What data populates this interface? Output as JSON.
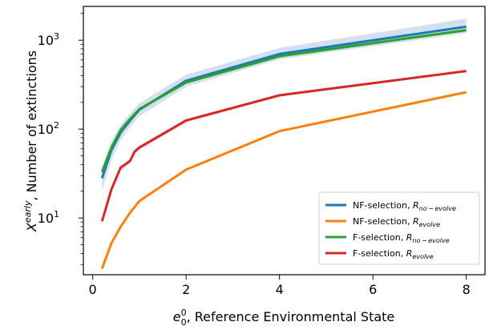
{
  "chart_data": {
    "type": "line",
    "xlabel_parts": {
      "symbol": "e",
      "sup": "0",
      "sub": "0",
      "text": ", Reference Environmental State"
    },
    "ylabel_parts": {
      "symbol": "X",
      "sup": "early",
      "text": ", Number of extinctions"
    },
    "xlim": [
      -0.2,
      8.4
    ],
    "ylim": [
      2.3,
      2400
    ],
    "yscale": "log",
    "x_ticks": [
      0,
      2,
      4,
      6,
      8
    ],
    "y_ticks": [
      {
        "value": 10,
        "base": "10",
        "exp": "1"
      },
      {
        "value": 100,
        "base": "10",
        "exp": "2"
      },
      {
        "value": 1000,
        "base": "10",
        "exp": "3"
      }
    ],
    "legend_position": "lower-right",
    "series": [
      {
        "label_text": "NF-selection, ",
        "label_sub": "R",
        "label_subscript": "no − evolve",
        "color": "#1f77b4",
        "band_color": "#aec7e8",
        "x": [
          0.2,
          0.4,
          0.6,
          0.8,
          1.0,
          2.0,
          4.0,
          8.0
        ],
        "y": [
          28,
          58,
          92,
          125,
          165,
          350,
          700,
          1420
        ],
        "band_low": [
          20,
          45,
          75,
          105,
          140,
          300,
          610,
          1200
        ],
        "band_high": [
          38,
          72,
          112,
          150,
          195,
          410,
          820,
          1750
        ]
      },
      {
        "label_text": "NF-selection, ",
        "label_sub": "R",
        "label_subscript": "evolve",
        "color": "#ff7f0e",
        "band_color": "#ffbb78",
        "x": [
          0.2,
          0.4,
          0.6,
          0.8,
          1.0,
          2.0,
          4.0,
          8.0
        ],
        "y": [
          2.7,
          5.2,
          8.0,
          11.5,
          15.5,
          35,
          95,
          260
        ],
        "band_low": [
          2.6,
          5.0,
          7.7,
          11.1,
          15.0,
          34,
          93,
          255
        ],
        "band_high": [
          2.8,
          5.4,
          8.3,
          11.9,
          16.0,
          36,
          97,
          266
        ]
      },
      {
        "label_text": "F-selection, ",
        "label_sub": "R",
        "label_subscript": "no − evolve",
        "color": "#2ca02c",
        "band_color": "#98df8a",
        "x": [
          0.2,
          0.4,
          0.6,
          0.8,
          1.0,
          2.0,
          4.0,
          8.0
        ],
        "y": [
          33,
          62,
          98,
          130,
          168,
          335,
          660,
          1300
        ],
        "band_low": [
          31,
          59,
          94,
          125,
          162,
          322,
          635,
          1250
        ],
        "band_high": [
          35,
          65,
          102,
          135,
          174,
          348,
          685,
          1350
        ]
      },
      {
        "label_text": "F-selection, ",
        "label_sub": "R",
        "label_subscript": "evolve",
        "color": "#d62728",
        "band_color": "#ff9896",
        "x": [
          0.2,
          0.4,
          0.6,
          0.7,
          0.8,
          0.9,
          1.0,
          2.0,
          4.0,
          8.0
        ],
        "y": [
          9.2,
          21,
          37,
          40,
          44,
          56,
          62,
          125,
          240,
          450
        ],
        "band_low": [
          8.7,
          20,
          35,
          38,
          42,
          53,
          59,
          120,
          232,
          437
        ],
        "band_high": [
          9.7,
          22,
          39,
          42,
          46,
          59,
          65,
          130,
          248,
          463
        ]
      }
    ]
  }
}
